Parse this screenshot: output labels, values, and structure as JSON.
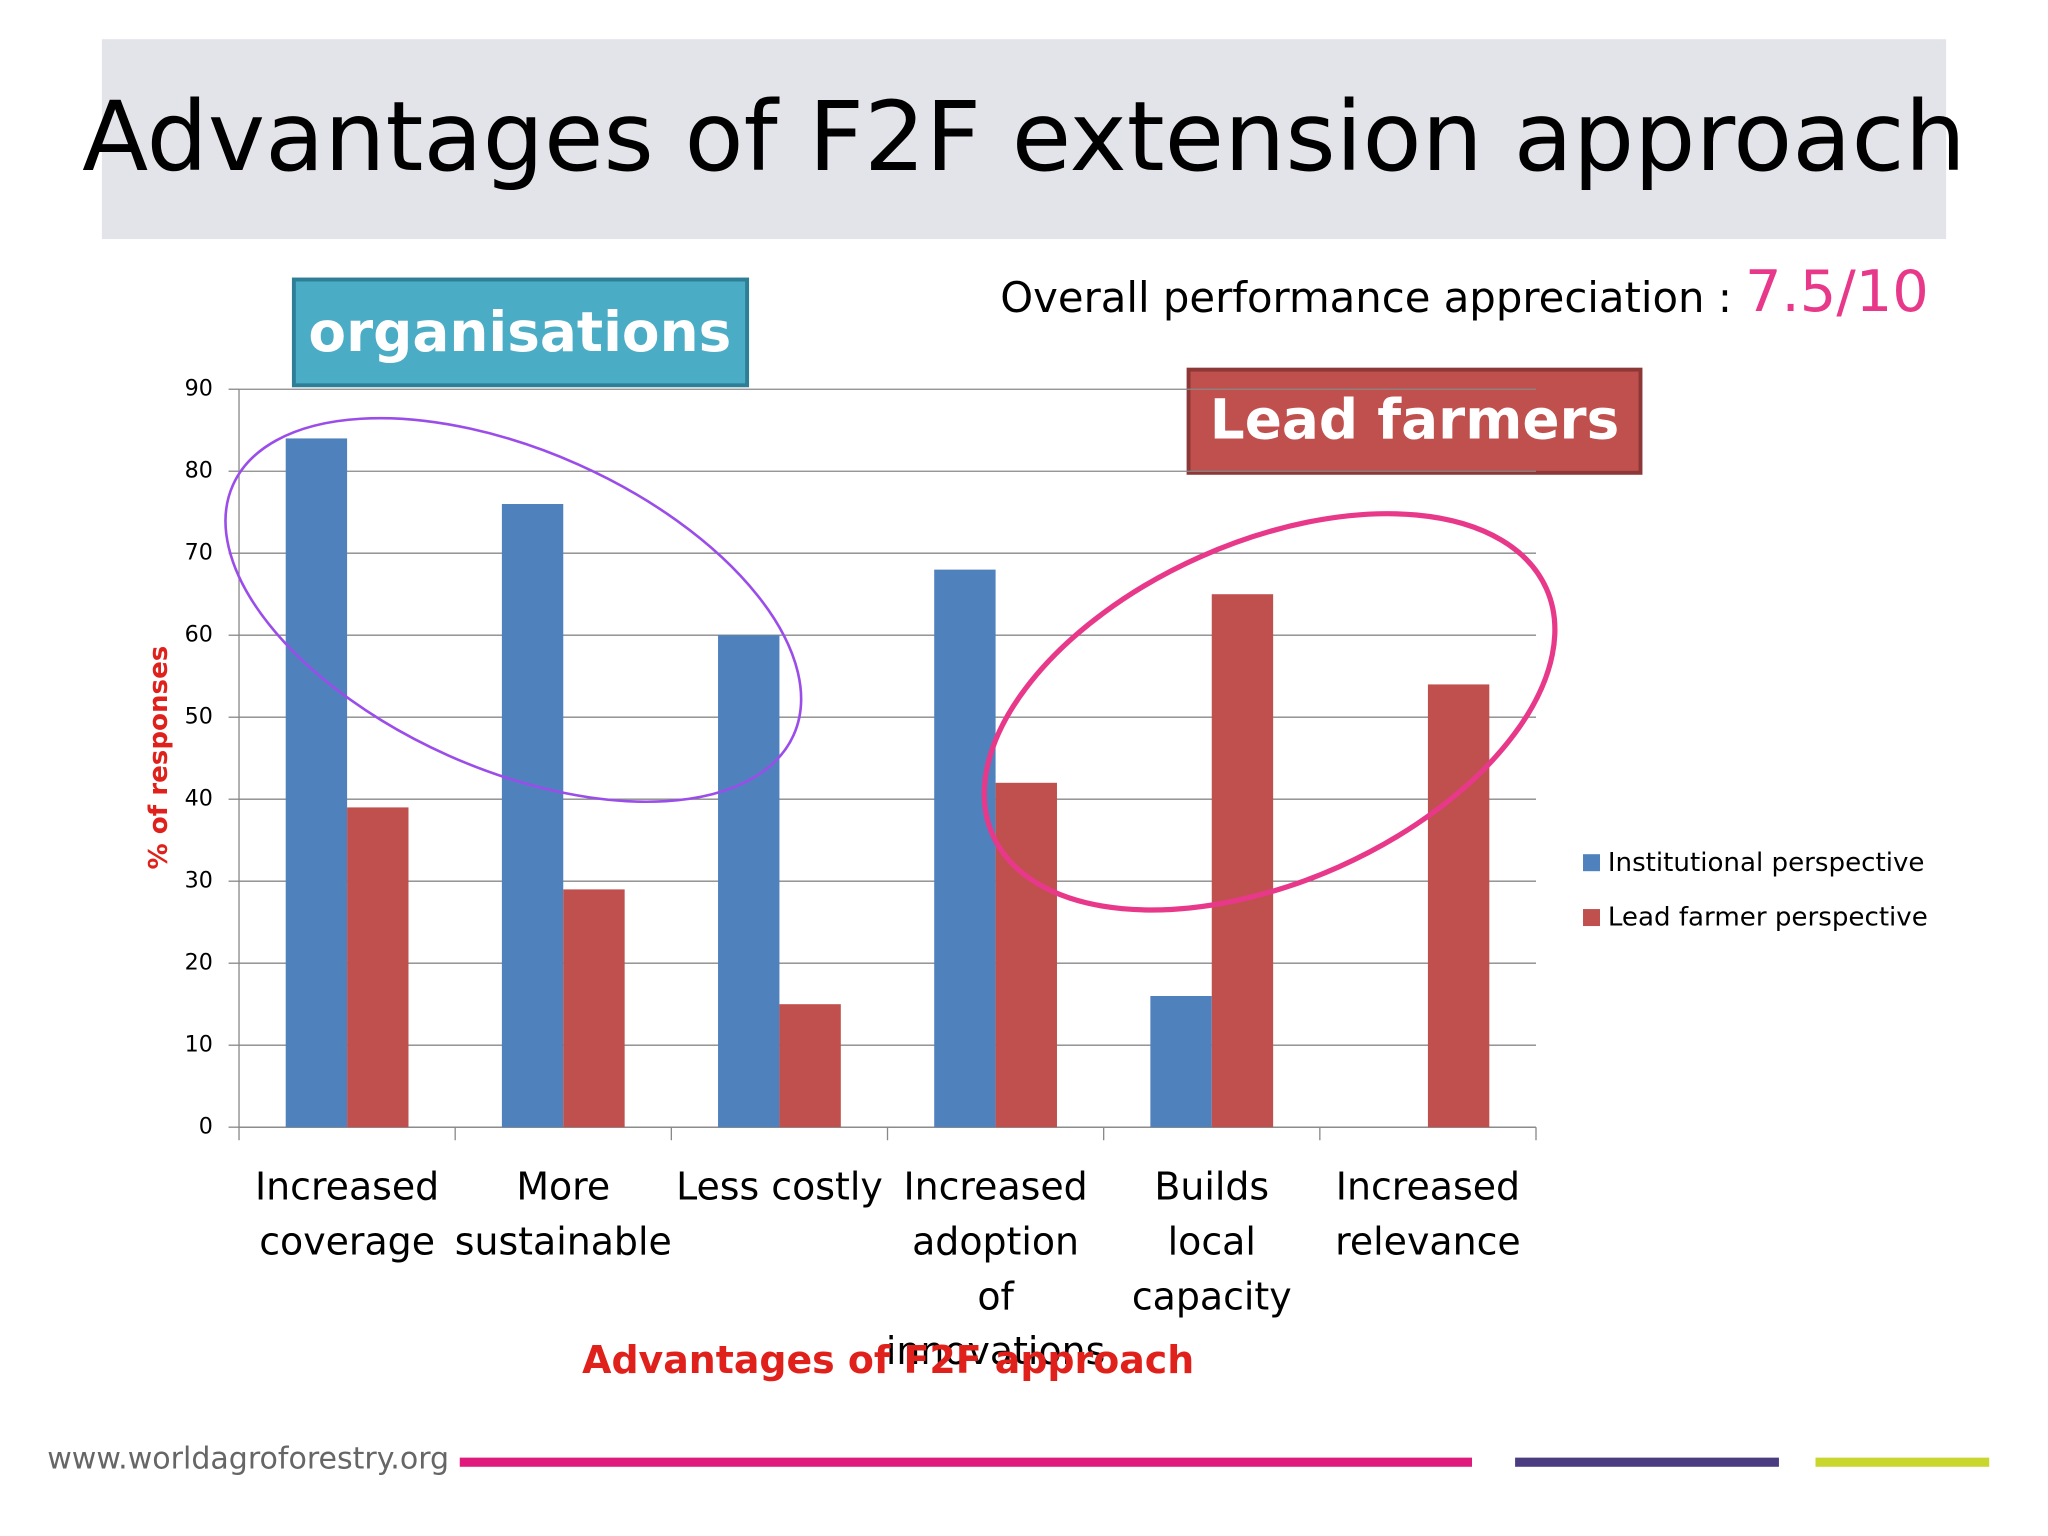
{
  "chart_data": {
    "type": "bar",
    "title": "Advantages of F2F extension approach",
    "subtitle": "Overall performance appreciation :",
    "score": "7.5/10",
    "annotations": [
      "organisations",
      "Lead farmers"
    ],
    "footer": "www.worldagroforestry.org",
    "x_label": "Advantages of F2F approach",
    "y_label": "% of responses",
    "categories": [
      "Increased coverage",
      "More sustainable",
      "Less costly",
      "Increased adoption of innovations",
      "Builds local capacity",
      "Increased relevance"
    ],
    "series": [
      {
        "name": "Institutional perspective",
        "color": "#4f81bd",
        "values": [
          84,
          76,
          60,
          68,
          16,
          null
        ]
      },
      {
        "name": "Lead farmer perspective",
        "color": "#c0504d",
        "values": [
          39,
          29,
          15,
          42,
          65,
          54
        ]
      }
    ],
    "ylim": [
      0,
      90
    ],
    "yticks": [
      0,
      10,
      20,
      30,
      40,
      50,
      60,
      70,
      80,
      90
    ],
    "grid": true,
    "legend": "right"
  }
}
